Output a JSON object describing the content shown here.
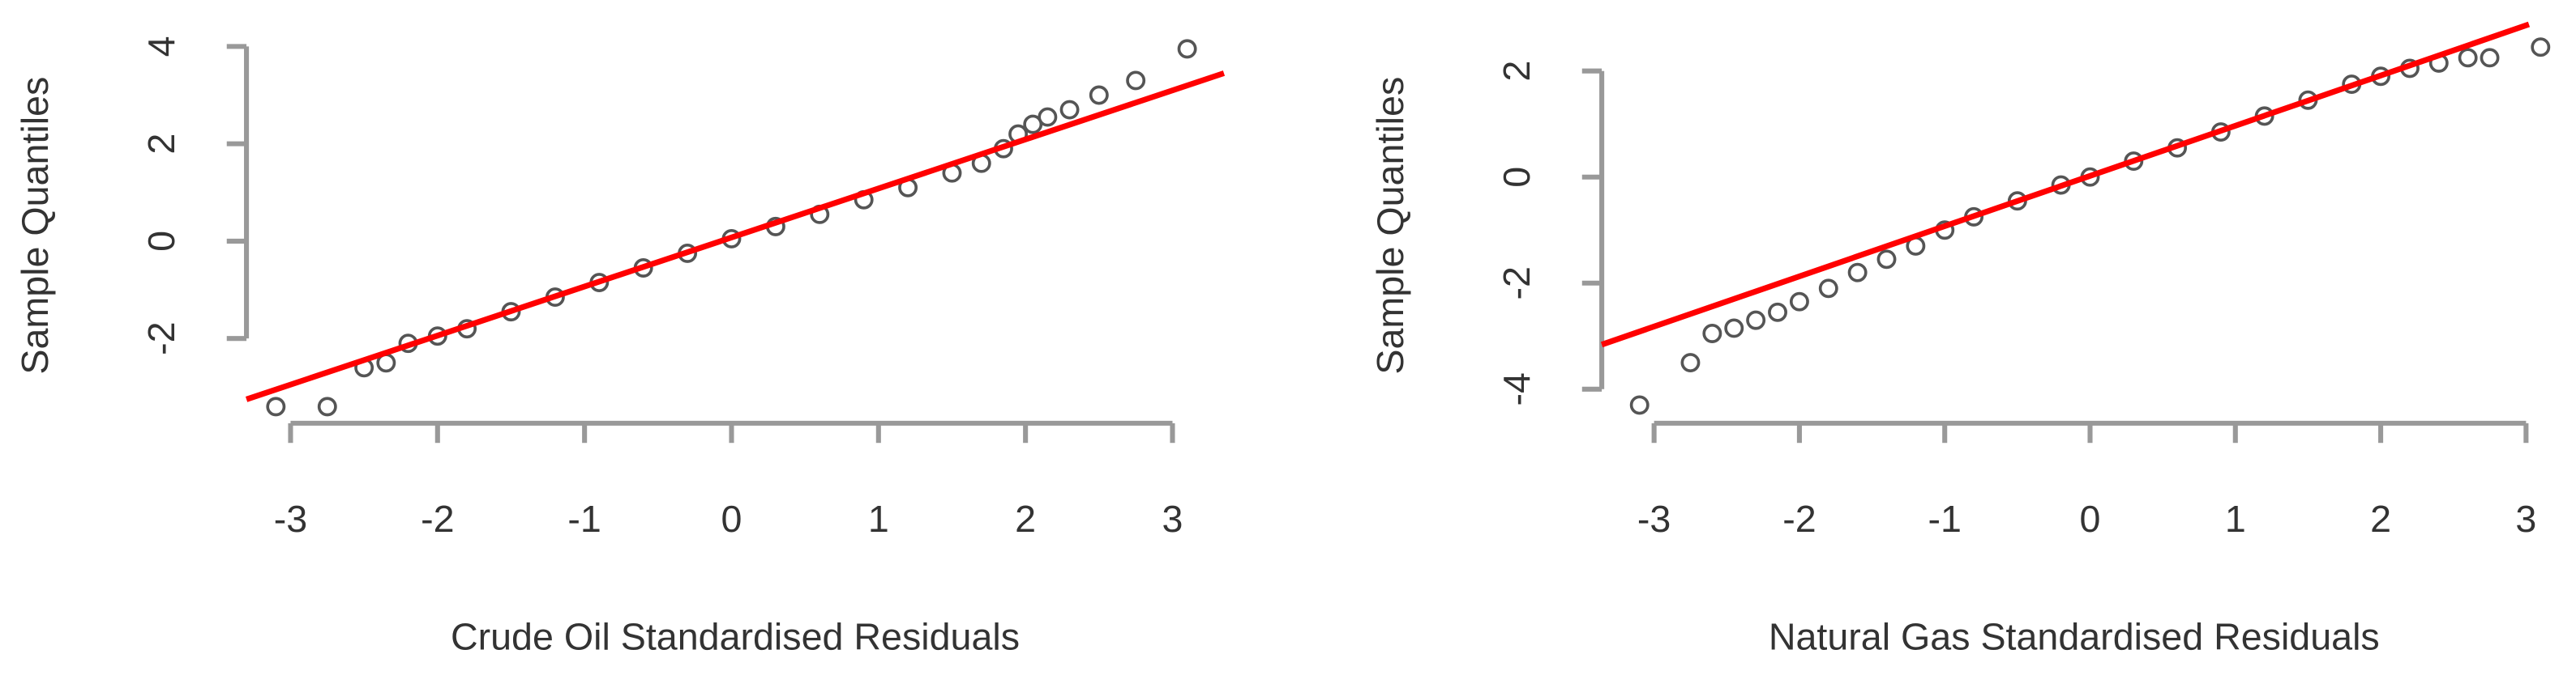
{
  "chart_data": [
    {
      "type": "scatter",
      "xlabel": "Crude Oil Standardised Residuals",
      "ylabel": "Sample Quantiles",
      "x": [
        -3.1,
        -2.75,
        -2.5,
        -2.35,
        -2.2,
        -2.0,
        -1.8,
        -1.5,
        -1.2,
        -0.9,
        -0.6,
        -0.3,
        0,
        0.3,
        0.6,
        0.9,
        1.2,
        1.5,
        1.7,
        1.85,
        1.95,
        2.05,
        2.15,
        2.3,
        2.5,
        2.75,
        3.1
      ],
      "y": [
        -3.4,
        -3.4,
        -2.6,
        -2.5,
        -2.1,
        -1.95,
        -1.8,
        -1.45,
        -1.15,
        -0.85,
        -0.55,
        -0.25,
        0.05,
        0.3,
        0.55,
        0.85,
        1.1,
        1.4,
        1.6,
        1.9,
        2.2,
        2.4,
        2.55,
        2.7,
        3.0,
        3.3,
        3.95
      ],
      "color": "#555555",
      "line": {
        "x": [
          -3.3,
          3.35
        ],
        "y": [
          -3.25,
          3.45
        ],
        "color": "#ff0000"
      },
      "xlim": [
        -3.3,
        3.35
      ],
      "ylim": [
        -3.64,
        4.28
      ],
      "xticks": [
        -3,
        -2,
        -1,
        0,
        1,
        2,
        3
      ],
      "yticks": [
        -2,
        0,
        2,
        4
      ]
    },
    {
      "type": "scatter",
      "xlabel": "Natural Gas Standardised Residuals",
      "ylabel": "Sample Quantiles",
      "x": [
        -3.1,
        -2.75,
        -2.6,
        -2.45,
        -2.3,
        -2.15,
        -2.0,
        -1.8,
        -1.6,
        -1.4,
        -1.2,
        -1.0,
        -0.8,
        -0.5,
        -0.2,
        0,
        0.3,
        0.6,
        0.9,
        1.2,
        1.5,
        1.8,
        2.0,
        2.2,
        2.4,
        2.6,
        2.75,
        3.1
      ],
      "y": [
        -4.3,
        -3.5,
        -2.95,
        -2.85,
        -2.7,
        -2.55,
        -2.35,
        -2.1,
        -1.8,
        -1.55,
        -1.3,
        -1.0,
        -0.75,
        -0.45,
        -0.15,
        0.0,
        0.3,
        0.55,
        0.85,
        1.15,
        1.45,
        1.75,
        1.9,
        2.05,
        2.15,
        2.25,
        2.25,
        2.45
      ],
      "color": "#555555",
      "line": {
        "x": [
          -3.36,
          3.02
        ],
        "y": [
          -3.16,
          2.88
        ],
        "color": "#ff0000"
      },
      "xlim": [
        -3.36,
        3.14
      ],
      "ylim": [
        -4.55,
        2.72
      ],
      "xticks": [
        -3,
        -2,
        -1,
        0,
        1,
        2,
        3
      ],
      "yticks": [
        -4,
        -2,
        0,
        2
      ]
    }
  ]
}
